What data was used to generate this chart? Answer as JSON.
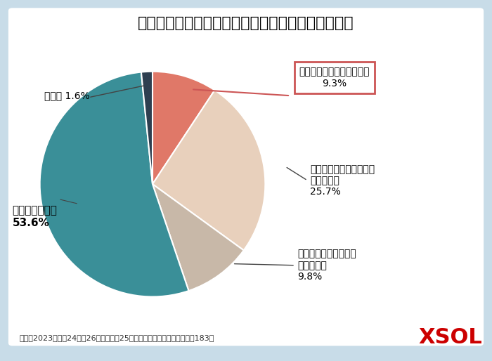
{
  "title": "停電を経験して太陽光発電を検討したいと思ったか",
  "slices": [
    {
      "label": "停電対策として検討したい",
      "pct": 9.3,
      "color": "#E07868"
    },
    {
      "label": "節電、電気代対策として\n検討したい",
      "pct": 25.7,
      "color": "#E8D0BC"
    },
    {
      "label": "エコや環境対策として\n検討したい",
      "pct": 9.8,
      "color": "#C8B8A8"
    },
    {
      "label": "検討していない",
      "pct": 53.6,
      "color": "#3A8F98"
    },
    {
      "label": "その他",
      "pct": 1.6,
      "color": "#2E3F50"
    }
  ],
  "footnote": "期間：2023年８月24日〜26日　対象：25歳以上の戸建て住宅に住む男女183人",
  "background_color": "#C8DCE8",
  "white_bg": "#FFFFFF",
  "title_fontsize": 16,
  "label_fontsize": 10,
  "footnote_fontsize": 8,
  "xsol_color": "#CC0000",
  "xsol_fontsize": 22,
  "box_edge_color": "#CC5555",
  "line_color_box": "#CC5555",
  "line_color_other": "#444444"
}
